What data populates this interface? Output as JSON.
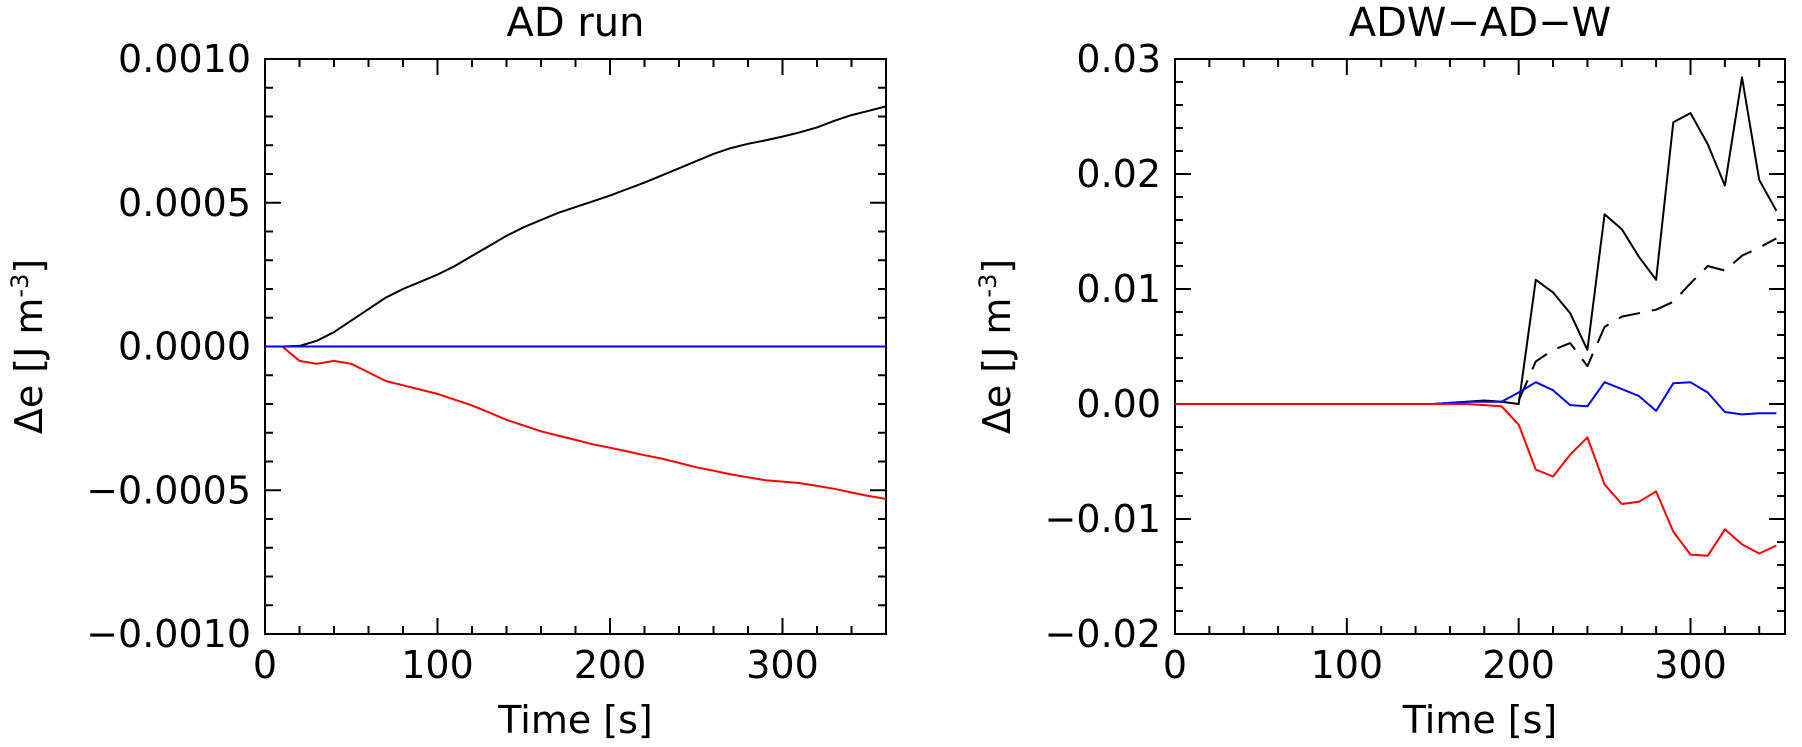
{
  "chart_data": [
    {
      "type": "line",
      "title": "AD run",
      "xlabel": "Time [s]",
      "ylabel_main": "Δe [J m",
      "ylabel_sup": "-3",
      "ylabel_close": "]",
      "xlim": [
        0,
        360
      ],
      "ylim": [
        -0.001,
        0.001
      ],
      "xticks": [
        0,
        100,
        200,
        300
      ],
      "xtick_labels": [
        "0",
        "100",
        "200",
        "300"
      ],
      "yticks": [
        -0.001,
        -0.0005,
        0.0,
        0.0005,
        0.001
      ],
      "ytick_labels": [
        "−0.0010",
        "−0.0005",
        "0.0000",
        "0.0005",
        "0.0010"
      ],
      "series": [
        {
          "color": "#000000",
          "style": "solid",
          "x": [
            0,
            10,
            20,
            30,
            40,
            50,
            60,
            70,
            80,
            90,
            100,
            110,
            120,
            130,
            140,
            150,
            160,
            170,
            180,
            190,
            200,
            210,
            220,
            230,
            240,
            250,
            260,
            270,
            280,
            290,
            300,
            310,
            320,
            330,
            340,
            350,
            360
          ],
          "y": [
            0,
            0,
            2e-06,
            2e-05,
            5e-05,
            9e-05,
            0.00013,
            0.00017,
            0.0002,
            0.000225,
            0.00025,
            0.00028,
            0.000315,
            0.00035,
            0.000385,
            0.000415,
            0.00044,
            0.000465,
            0.000485,
            0.000505,
            0.000525,
            0.000548,
            0.00057,
            0.000595,
            0.00062,
            0.000645,
            0.00067,
            0.00069,
            0.000705,
            0.000717,
            0.00073,
            0.000745,
            0.000762,
            0.000785,
            0.000805,
            0.00082,
            0.000835
          ]
        },
        {
          "color": "#ff0000",
          "style": "solid",
          "x": [
            0,
            10,
            20,
            30,
            40,
            50,
            60,
            70,
            80,
            90,
            100,
            110,
            120,
            130,
            140,
            150,
            160,
            170,
            180,
            190,
            200,
            210,
            220,
            230,
            240,
            250,
            260,
            270,
            280,
            290,
            300,
            310,
            320,
            330,
            340,
            350,
            360
          ],
          "y": [
            0,
            0,
            -5e-05,
            -6e-05,
            -5e-05,
            -6e-05,
            -9e-05,
            -0.00012,
            -0.000135,
            -0.00015,
            -0.000165,
            -0.000185,
            -0.000205,
            -0.00023,
            -0.000255,
            -0.000275,
            -0.000295,
            -0.00031,
            -0.000325,
            -0.00034,
            -0.000352,
            -0.000365,
            -0.000378,
            -0.00039,
            -0.000405,
            -0.00042,
            -0.000432,
            -0.000445,
            -0.000455,
            -0.000465,
            -0.00047,
            -0.000475,
            -0.000485,
            -0.000495,
            -0.000508,
            -0.00052,
            -0.00053
          ]
        },
        {
          "color": "#0000ff",
          "style": "solid",
          "x": [
            0,
            360
          ],
          "y": [
            0,
            0
          ]
        }
      ]
    },
    {
      "type": "line",
      "title": "ADW−AD−W",
      "xlabel": "Time [s]",
      "ylabel_main": "Δe [J m",
      "ylabel_sup": "-3",
      "ylabel_close": "]",
      "xlim": [
        0,
        355
      ],
      "ylim": [
        -0.02,
        0.03
      ],
      "xticks": [
        0,
        100,
        200,
        300
      ],
      "xtick_labels": [
        "0",
        "100",
        "200",
        "300"
      ],
      "yticks": [
        -0.02,
        -0.01,
        0.0,
        0.01,
        0.02,
        0.03
      ],
      "ytick_labels": [
        "−0.02",
        "−0.01",
        "0.00",
        "0.01",
        "0.02",
        "0.03"
      ],
      "series": [
        {
          "color": "#000000",
          "style": "solid",
          "x": [
            0,
            10,
            20,
            30,
            40,
            50,
            60,
            70,
            80,
            90,
            100,
            110,
            120,
            130,
            140,
            150,
            160,
            170,
            180,
            190,
            200,
            210,
            220,
            230,
            240,
            250,
            260,
            270,
            280,
            290,
            300,
            310,
            320,
            330,
            340,
            350
          ],
          "y": [
            0,
            0,
            0,
            0,
            0,
            0,
            0,
            0,
            0,
            0,
            0,
            0,
            0,
            0,
            0,
            0,
            0.0001,
            0.0002,
            0.0003,
            0.0002,
            0.0,
            0.0108,
            0.0097,
            0.0079,
            0.0047,
            0.0165,
            0.0152,
            0.0128,
            0.0108,
            0.0245,
            0.0253,
            0.0226,
            0.019,
            0.0284,
            0.0195,
            0.0168
          ]
        },
        {
          "color": "#000000",
          "style": "dashed",
          "x": [
            200,
            205,
            210,
            220,
            230,
            240,
            250,
            260,
            270,
            280,
            290,
            300,
            310,
            320,
            330,
            340,
            350
          ],
          "y": [
            0.0003,
            0.002,
            0.0037,
            0.0047,
            0.0053,
            0.0033,
            0.0067,
            0.0076,
            0.0079,
            0.0082,
            0.0089,
            0.0105,
            0.012,
            0.0116,
            0.0129,
            0.0136,
            0.0144
          ]
        },
        {
          "color": "#0000ff",
          "style": "solid",
          "x": [
            0,
            10,
            20,
            30,
            40,
            50,
            60,
            70,
            80,
            90,
            100,
            110,
            120,
            130,
            140,
            150,
            160,
            170,
            180,
            190,
            200,
            210,
            220,
            230,
            240,
            250,
            260,
            270,
            280,
            290,
            300,
            310,
            320,
            330,
            340,
            350
          ],
          "y": [
            0,
            0,
            0,
            0,
            0,
            0,
            0,
            0,
            0,
            0,
            0,
            0,
            0,
            0,
            0,
            0,
            0.0001,
            0.0002,
            0.0002,
            0.0002,
            0.001,
            0.0019,
            0.0012,
            -0.0001,
            -0.0002,
            0.0019,
            0.0013,
            0.0007,
            -0.0006,
            0.0018,
            0.0019,
            0.001,
            -0.0007,
            -0.0009,
            -0.0008,
            -0.0008
          ]
        },
        {
          "color": "#ff0000",
          "style": "solid",
          "x": [
            0,
            10,
            20,
            30,
            40,
            50,
            60,
            70,
            80,
            90,
            100,
            110,
            120,
            130,
            140,
            150,
            160,
            170,
            180,
            190,
            200,
            210,
            220,
            230,
            240,
            250,
            260,
            270,
            280,
            290,
            300,
            310,
            320,
            330,
            340,
            350
          ],
          "y": [
            0,
            0,
            0,
            0,
            0,
            0,
            0,
            0,
            0,
            0,
            0,
            0,
            0,
            0,
            0,
            0,
            0,
            0,
            -0.0001,
            -0.0002,
            -0.0018,
            -0.0057,
            -0.0063,
            -0.0044,
            -0.0029,
            -0.007,
            -0.0087,
            -0.0085,
            -0.0076,
            -0.0111,
            -0.0131,
            -0.0132,
            -0.0109,
            -0.0122,
            -0.013,
            -0.0123
          ]
        }
      ]
    }
  ]
}
